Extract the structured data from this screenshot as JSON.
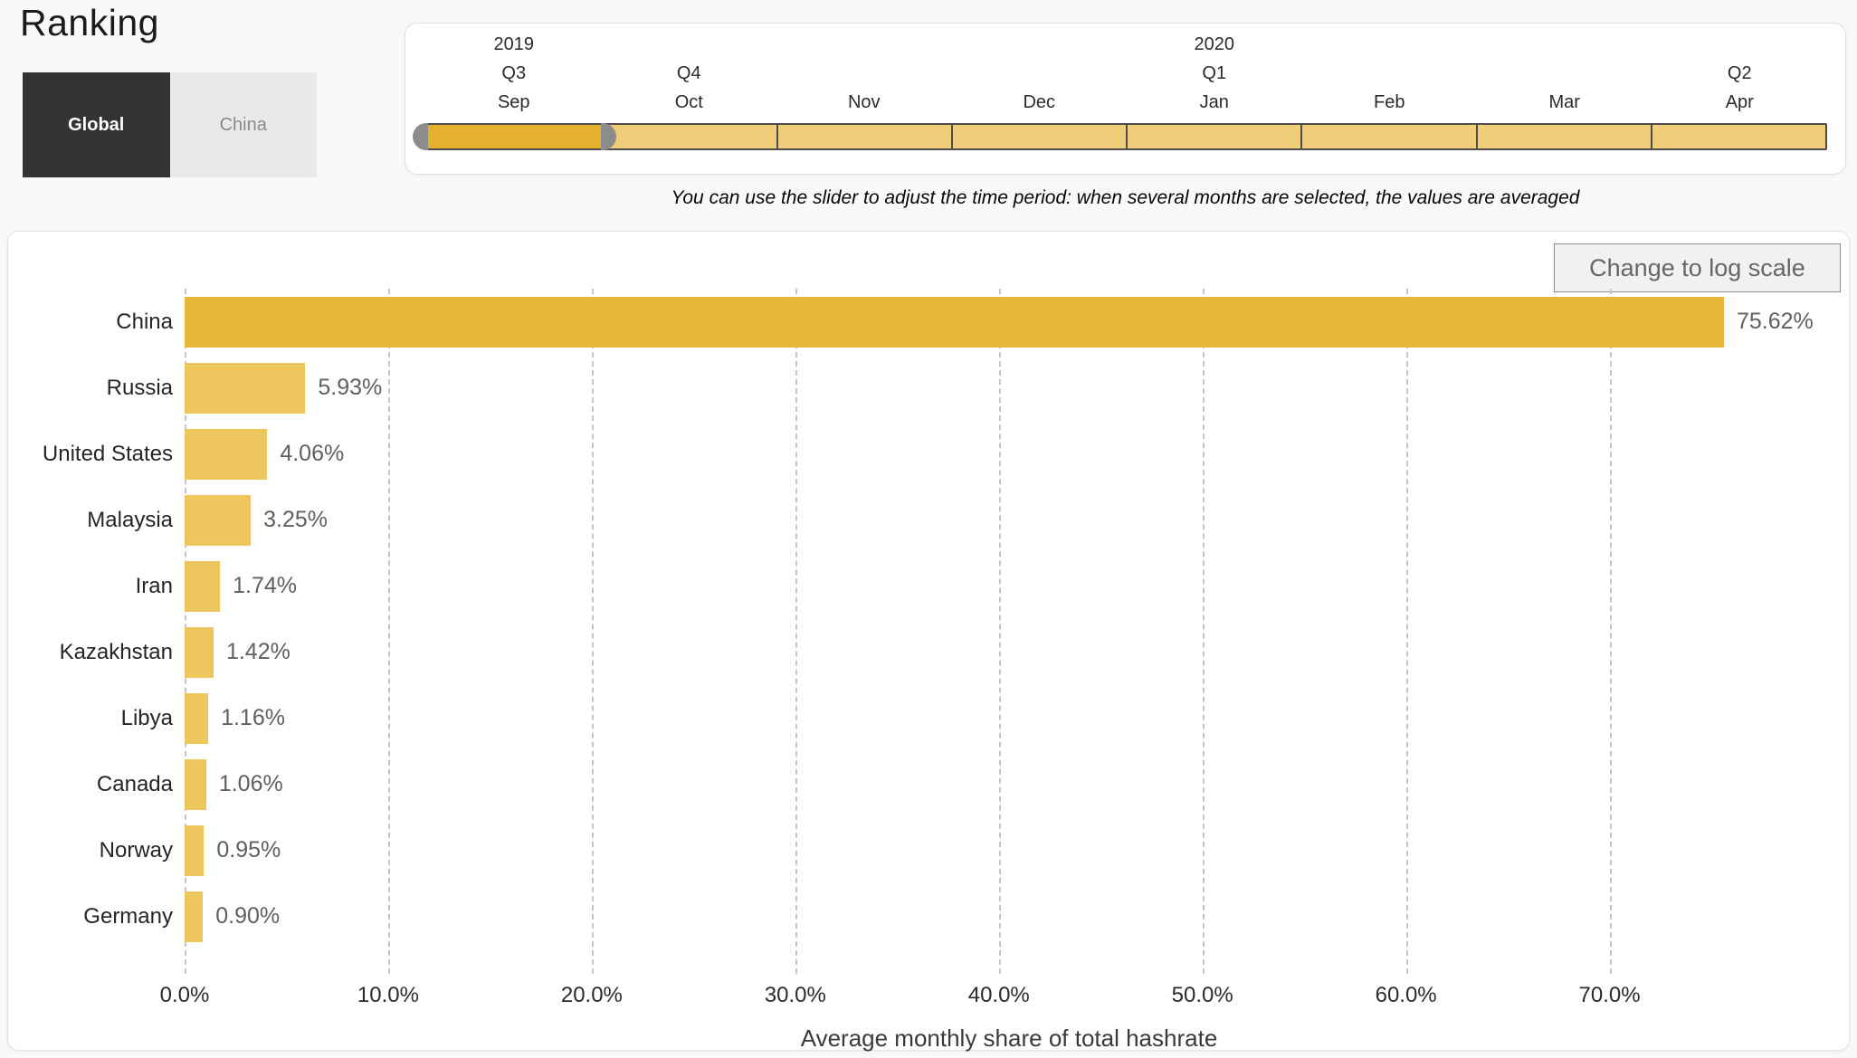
{
  "page": {
    "title": "Ranking"
  },
  "tabs": [
    {
      "label": "Global",
      "active": true
    },
    {
      "label": "China",
      "active": false
    }
  ],
  "slider": {
    "note": "You can use the slider to adjust the time period: when several months are selected, the values are averaged",
    "segments": [
      {
        "month": "Sep",
        "quarter": "Q3",
        "year": "2019",
        "selected": true
      },
      {
        "month": "Oct",
        "quarter": "Q4",
        "year": "",
        "selected": false
      },
      {
        "month": "Nov",
        "quarter": "",
        "year": "",
        "selected": false
      },
      {
        "month": "Dec",
        "quarter": "",
        "year": "",
        "selected": false
      },
      {
        "month": "Jan",
        "quarter": "Q1",
        "year": "2020",
        "selected": false
      },
      {
        "month": "Feb",
        "quarter": "",
        "year": "",
        "selected": false
      },
      {
        "month": "Mar",
        "quarter": "",
        "year": "",
        "selected": false
      },
      {
        "month": "Apr",
        "quarter": "Q2",
        "year": "",
        "selected": false
      }
    ]
  },
  "chart": {
    "log_button_label": "Change to log scale"
  },
  "chart_data": {
    "type": "bar",
    "orientation": "horizontal",
    "title": "",
    "categories": [
      "China",
      "Russia",
      "United States",
      "Malaysia",
      "Iran",
      "Kazakhstan",
      "Libya",
      "Canada",
      "Norway",
      "Germany"
    ],
    "values": [
      75.62,
      5.93,
      4.06,
      3.25,
      1.74,
      1.42,
      1.16,
      1.06,
      0.95,
      0.9
    ],
    "value_labels": [
      "75.62%",
      "5.93%",
      "4.06%",
      "3.25%",
      "1.74%",
      "1.42%",
      "1.16%",
      "1.06%",
      "0.95%",
      "0.90%"
    ],
    "xlabel": "Average monthly share of total hashrate",
    "ylabel": "",
    "xticks": [
      "0.0%",
      "10.0%",
      "20.0%",
      "30.0%",
      "40.0%",
      "50.0%",
      "60.0%",
      "70.0%"
    ],
    "xtick_values": [
      0,
      10,
      20,
      30,
      40,
      50,
      60,
      70
    ],
    "xlim": [
      0,
      81
    ],
    "grid": "dashed-vertical",
    "legend": "none",
    "bar_color": "#EEC65E",
    "highlight_color": "#E8B83C",
    "highlight_category": "China"
  }
}
